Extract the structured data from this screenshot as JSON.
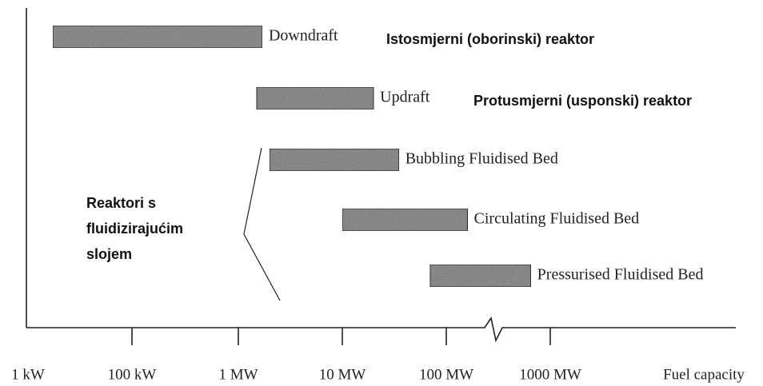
{
  "chart_data": {
    "type": "range-bar",
    "categories": [
      "Downdraft",
      "Updraft",
      "Bubbling Fluidised Bed",
      "Circulating Fluidised Bed",
      "Pressurised Fluidised Bed"
    ],
    "starts": [
      3,
      1500,
      2000,
      10000,
      70000
    ],
    "ends": [
      1700,
      20000,
      35000,
      160000,
      650000
    ],
    "category_notes": [
      "Istosmjerni (oborinski) reaktor",
      "Protusmjerni (usponski) reaktor",
      null,
      null,
      null
    ],
    "group_note": [
      "Reaktori s",
      "fluidizirajućim",
      "slojem"
    ],
    "xlabel": "Fuel capacity",
    "xticks": [
      {
        "value": 1,
        "label": "1 kW"
      },
      {
        "value": 100,
        "label": "100 kW"
      },
      {
        "value": 1000,
        "label": "1 MW"
      },
      {
        "value": 10000,
        "label": "10 MW"
      },
      {
        "value": 100000,
        "label": "100 MW"
      },
      {
        "value": 1000000,
        "label": "1000 MW"
      }
    ],
    "xscale": "log",
    "color": "#9a9a9a"
  }
}
